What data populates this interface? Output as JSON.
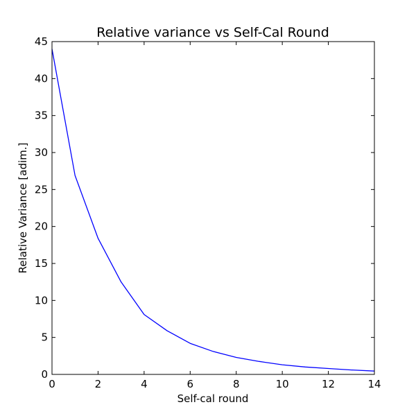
{
  "chart_data": {
    "type": "line",
    "title": "Relative variance vs Self-Cal Round",
    "xlabel": "Self-cal round",
    "ylabel": "Relative Variance [adim.]",
    "xlim": [
      0,
      14
    ],
    "ylim": [
      0,
      45
    ],
    "xticks": [
      "0",
      "2",
      "4",
      "6",
      "8",
      "10",
      "12",
      "14"
    ],
    "yticks": [
      "0",
      "5",
      "10",
      "15",
      "20",
      "25",
      "30",
      "35",
      "40",
      "45"
    ],
    "grid": false,
    "series": [
      {
        "color": "#0000ff",
        "x": [
          0,
          1,
          2,
          3,
          4,
          5,
          6,
          7,
          8,
          9,
          10,
          11,
          12,
          13,
          14
        ],
        "y": [
          44.0,
          26.9,
          18.4,
          12.5,
          8.1,
          5.9,
          4.2,
          3.1,
          2.3,
          1.75,
          1.3,
          1.0,
          0.8,
          0.6,
          0.45
        ]
      }
    ]
  }
}
